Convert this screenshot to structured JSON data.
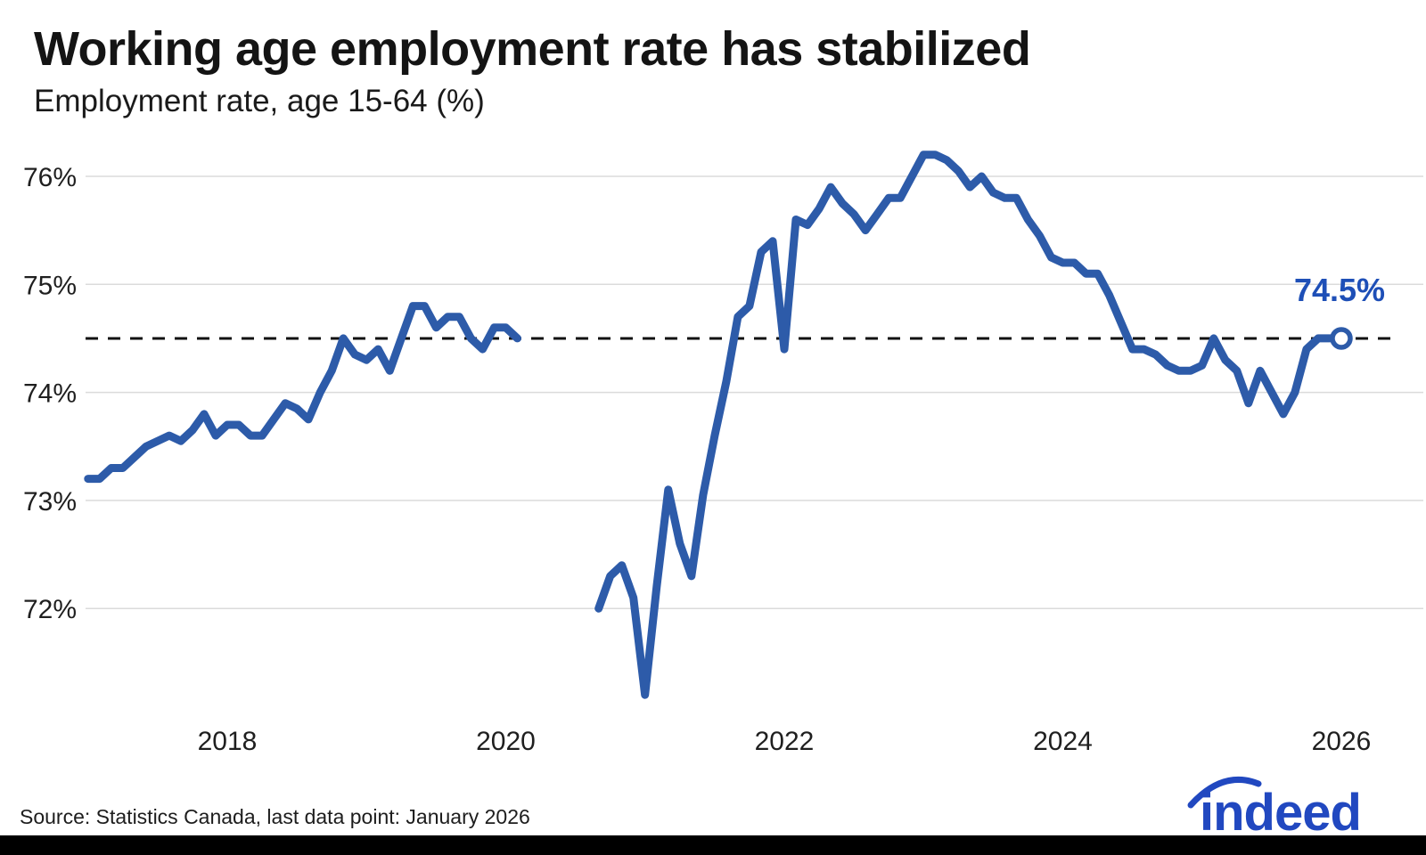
{
  "page": {
    "title": "Working age employment rate has stabilized",
    "subtitle": "Employment rate, age 15-64 (%)",
    "source": "Source: Statistics Canada, last data point: January 2026",
    "logo_text": "indeed"
  },
  "colors": {
    "line": "#2D5BA9",
    "annotation": "#1E4FB7",
    "logo": "#2148C0",
    "grid": "#DBDBDB",
    "dashed": "#111111",
    "axis_text": "#1F1F1F",
    "footer_bar": "#000000",
    "background": "#FFFFFF"
  },
  "chart_data": {
    "type": "line",
    "title": "Working age employment rate has stabilized",
    "subtitle": "Employment rate, age 15-64 (%)",
    "xlabel": "",
    "ylabel": "Employment rate, age 15-64 (%)",
    "ylim": [
      71.0,
      76.5
    ],
    "grid": "horizontal",
    "y_ticks": [
      {
        "label": "76%",
        "value": 76
      },
      {
        "label": "75%",
        "value": 75
      },
      {
        "label": "74%",
        "value": 74
      },
      {
        "label": "73%",
        "value": 73
      },
      {
        "label": "72%",
        "value": 72
      }
    ],
    "x_ticks": [
      {
        "label": "2018",
        "month": "2018-01"
      },
      {
        "label": "2020",
        "month": "2020-01"
      },
      {
        "label": "2022",
        "month": "2022-01"
      },
      {
        "label": "2024",
        "month": "2024-01"
      },
      {
        "label": "2026",
        "month": "2026-01"
      }
    ],
    "reference_line": {
      "value": 74.5,
      "label": "74.5%",
      "style": "dashed"
    },
    "x_start": "2017-01",
    "x_end": "2026-01",
    "data_gap": "2020-03 through 2020-08 (no line drawn)",
    "series": [
      {
        "name": "Employment rate age 15-64, monthly (pre-pandemic segment)",
        "start": "2017-01",
        "values": [
          73.2,
          73.2,
          73.3,
          73.3,
          73.4,
          73.5,
          73.55,
          73.6,
          73.55,
          73.65,
          73.8,
          73.6,
          73.7,
          73.7,
          73.6,
          73.6,
          73.75,
          73.9,
          73.85,
          73.75,
          74.0,
          74.2,
          74.5,
          74.35,
          74.3,
          74.4,
          74.2,
          74.5,
          74.8,
          74.8,
          74.6,
          74.7,
          74.7,
          74.5,
          74.4,
          74.6,
          74.6,
          74.5
        ],
        "end_marker": false
      },
      {
        "name": "Employment rate age 15-64, monthly (post-gap segment)",
        "start": "2020-09",
        "values": [
          72.0,
          72.3,
          72.4,
          72.1,
          71.2,
          72.2,
          73.1,
          72.6,
          72.3,
          73.05,
          73.6,
          74.1,
          74.7,
          74.8,
          75.3,
          75.4,
          74.4,
          75.6,
          75.55,
          75.7,
          75.9,
          75.75,
          75.65,
          75.5,
          75.65,
          75.8,
          75.8,
          76.0,
          76.2,
          76.2,
          76.15,
          76.05,
          75.9,
          76.0,
          75.85,
          75.8,
          75.8,
          75.6,
          75.45,
          75.25,
          75.2,
          75.2,
          75.1,
          75.1,
          74.9,
          74.65,
          74.4,
          74.4,
          74.35,
          74.25,
          74.2,
          74.2,
          74.25,
          74.5,
          74.3,
          74.2,
          73.9,
          74.2,
          74.0,
          73.8,
          74.0,
          74.4,
          74.5,
          74.5,
          74.5
        ],
        "end_marker": true
      }
    ],
    "last_point": {
      "month": "2026-01",
      "value": 74.5
    }
  }
}
